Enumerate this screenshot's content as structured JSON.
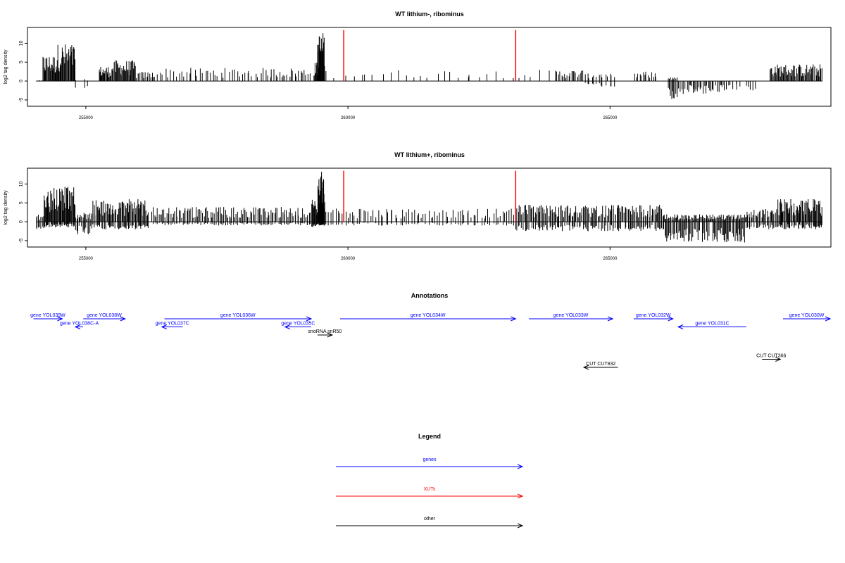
{
  "colors": {
    "gene": "#0000ff",
    "xut": "#ff0000",
    "other": "#000000"
  },
  "chart_data": [
    {
      "id": "panel1",
      "type": "bar",
      "title": "WT lithium-, ribominus",
      "ylabel": "log2 tag density",
      "xlim": [
        253900,
        269200
      ],
      "ylim": [
        -6.5,
        14
      ],
      "xticks": [
        255000,
        260000,
        265000
      ],
      "xtick_labels": [
        "255000",
        "260000",
        "265000"
      ],
      "yticks": [
        -5,
        0,
        5,
        10
      ],
      "ytick_labels": [
        "-5",
        "0",
        "5",
        "10"
      ],
      "baseline": {
        "x": [
          254050,
          269050
        ]
      },
      "markers": {
        "x": [
          259920,
          263200
        ],
        "y": [
          0,
          13.5
        ],
        "color": "#ff0000"
      },
      "coverage": [
        {
          "x0": 254050,
          "x1": 254180,
          "ymax": 0.2,
          "ymin": 0,
          "n": 3
        },
        {
          "x0": 254180,
          "x1": 254450,
          "ymax": 7,
          "ymin": 0,
          "n": 24
        },
        {
          "x0": 254450,
          "x1": 254800,
          "ymax": 10,
          "ymin": 0,
          "n": 30
        },
        {
          "x0": 254800,
          "x1": 255100,
          "ymax": 0.5,
          "ymin": -2,
          "n": 3
        },
        {
          "x0": 255250,
          "x1": 255500,
          "ymax": 4,
          "ymin": 0,
          "n": 20
        },
        {
          "x0": 255500,
          "x1": 255950,
          "ymax": 5.5,
          "ymin": 0,
          "n": 34
        },
        {
          "x0": 255950,
          "x1": 256300,
          "ymax": 2.5,
          "ymin": 0,
          "n": 14
        },
        {
          "x0": 256300,
          "x1": 258500,
          "ymax": 3.5,
          "ymin": 0,
          "n": 44
        },
        {
          "x0": 258500,
          "x1": 259300,
          "ymax": 3.5,
          "ymin": 0,
          "n": 22
        },
        {
          "x0": 259350,
          "x1": 259420,
          "ymax": 5,
          "ymin": 0,
          "n": 8
        },
        {
          "x0": 259420,
          "x1": 259560,
          "ymax": 13,
          "ymin": 0,
          "n": 20
        },
        {
          "x0": 259560,
          "x1": 263900,
          "ymax": 3,
          "ymin": 0,
          "n": 30
        },
        {
          "x0": 263950,
          "x1": 264500,
          "ymax": 3,
          "ymin": 0,
          "n": 20
        },
        {
          "x0": 264500,
          "x1": 265100,
          "ymax": 2,
          "ymin": -1.5,
          "n": 14
        },
        {
          "x0": 265450,
          "x1": 265900,
          "ymax": 2.5,
          "ymin": 0,
          "n": 14
        },
        {
          "x0": 266100,
          "x1": 266300,
          "ymax": 1,
          "ymin": -5,
          "n": 10
        },
        {
          "x0": 266300,
          "x1": 267200,
          "ymax": 0,
          "ymin": -3.5,
          "n": 40
        },
        {
          "x0": 267200,
          "x1": 267800,
          "ymax": 0,
          "ymin": -2.5,
          "n": 14
        },
        {
          "x0": 268050,
          "x1": 268400,
          "ymax": 4.5,
          "ymin": 0,
          "n": 24
        },
        {
          "x0": 268400,
          "x1": 269050,
          "ymax": 4.5,
          "ymin": 0,
          "n": 40
        }
      ]
    },
    {
      "id": "panel2",
      "type": "bar",
      "title": "WT lithium+, ribominus",
      "ylabel": "log2 tag density",
      "xlim": [
        253900,
        269200
      ],
      "ylim": [
        -6.5,
        14
      ],
      "xticks": [
        255000,
        260000,
        265000
      ],
      "xtick_labels": [
        "255000",
        "260000",
        "265000"
      ],
      "yticks": [
        -5,
        0,
        5,
        10
      ],
      "ytick_labels": [
        "-5",
        "0",
        "5",
        "10"
      ],
      "baseline": {
        "x": [
          254050,
          269050
        ]
      },
      "markers": {
        "x": [
          259920,
          263200
        ],
        "y": [
          0,
          13.5
        ],
        "color": "#ff0000"
      },
      "coverage": [
        {
          "x0": 254050,
          "x1": 254200,
          "ymax": 2,
          "ymin": -2.5,
          "n": 8
        },
        {
          "x0": 254200,
          "x1": 254800,
          "ymax": 9.5,
          "ymin": -1.5,
          "n": 50
        },
        {
          "x0": 254800,
          "x1": 255100,
          "ymax": 2.5,
          "ymin": -3.5,
          "n": 16
        },
        {
          "x0": 255100,
          "x1": 256200,
          "ymax": 6,
          "ymin": -2,
          "n": 70
        },
        {
          "x0": 256250,
          "x1": 259300,
          "ymax": 4,
          "ymin": -1,
          "n": 120
        },
        {
          "x0": 259300,
          "x1": 259420,
          "ymax": 6,
          "ymin": -1.5,
          "n": 12
        },
        {
          "x0": 259420,
          "x1": 259560,
          "ymax": 13.5,
          "ymin": -1,
          "n": 22
        },
        {
          "x0": 259560,
          "x1": 263200,
          "ymax": 3.5,
          "ymin": -1,
          "n": 80
        },
        {
          "x0": 263200,
          "x1": 266000,
          "ymax": 4.5,
          "ymin": -2.5,
          "n": 140
        },
        {
          "x0": 266000,
          "x1": 267600,
          "ymax": 2,
          "ymin": -5.5,
          "n": 100
        },
        {
          "x0": 267600,
          "x1": 268200,
          "ymax": 3.5,
          "ymin": -2,
          "n": 30
        },
        {
          "x0": 268200,
          "x1": 269050,
          "ymax": 6,
          "ymin": -2,
          "n": 60
        }
      ]
    }
  ],
  "annotations": {
    "title": "Annotations",
    "xlim": [
      253900,
      269200
    ],
    "features": [
      {
        "label": "gene YOL039W",
        "type": "gene",
        "x0": 254000,
        "x1": 254550,
        "row": 0
      },
      {
        "label": "gene YOL038C-A",
        "type": "gene",
        "x0": 254950,
        "x1": 254800,
        "row": 1
      },
      {
        "label": "gene YOL038W",
        "type": "gene",
        "x0": 254950,
        "x1": 255750,
        "row": 0
      },
      {
        "label": "gene YOL037C",
        "type": "gene",
        "x0": 256850,
        "x1": 256450,
        "row": 1
      },
      {
        "label": "gene YOL036W",
        "type": "gene",
        "x0": 256500,
        "x1": 259300,
        "row": 0
      },
      {
        "label": "gene YOL035C",
        "type": "gene",
        "x0": 259300,
        "x1": 258800,
        "row": 1
      },
      {
        "label": "snoRNA snR50",
        "type": "other",
        "x0": 259420,
        "x1": 259700,
        "row": 2
      },
      {
        "label": "gene YOL034W",
        "type": "gene",
        "x0": 259850,
        "x1": 263200,
        "row": 0
      },
      {
        "label": "gene YOL033W",
        "type": "gene",
        "x0": 263450,
        "x1": 265050,
        "row": 0
      },
      {
        "label": "gene YOL032W",
        "type": "gene",
        "x0": 265450,
        "x1": 266200,
        "row": 0
      },
      {
        "label": "gene YOL031C",
        "type": "gene",
        "x0": 267600,
        "x1": 266300,
        "row": 1
      },
      {
        "label": "gene YOL030W",
        "type": "gene",
        "x0": 268300,
        "x1": 269200,
        "row": 0
      },
      {
        "label": "CUT CUT832",
        "type": "other",
        "x0": 265150,
        "x1": 264500,
        "row": 6
      },
      {
        "label": "CUT CUT366",
        "type": "other",
        "x0": 267900,
        "x1": 268250,
        "row": 5
      }
    ]
  },
  "legend": {
    "title": "Legend",
    "items": [
      {
        "label": "genes",
        "type": "gene"
      },
      {
        "label": "XUTs",
        "type": "xut"
      },
      {
        "label": "other",
        "type": "other"
      }
    ]
  }
}
